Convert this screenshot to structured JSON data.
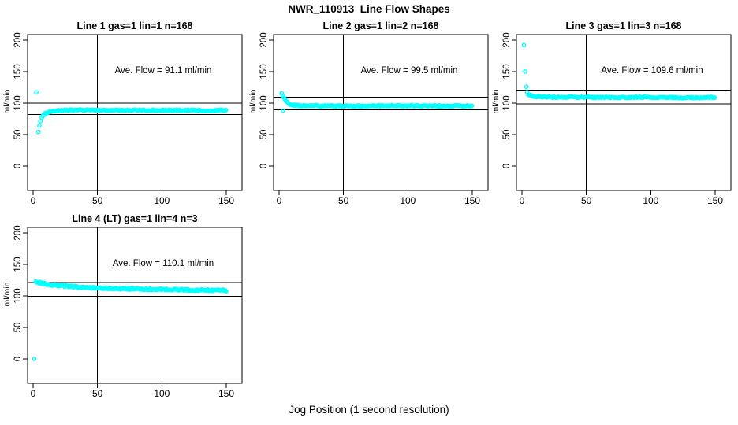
{
  "page": {
    "title": "NWR_110913  Line Flow Shapes",
    "xlabel": "Jog Position (1 second resolution)",
    "background_color": "#FFFFFF",
    "marker_color": "#00FFFF",
    "line_color": "#000000"
  },
  "chart_data": [
    {
      "type": "scatter",
      "title": "Line 1 gas=1 lin=1 n=168",
      "annotation": "Ave. Flow =  91.1  ml/min",
      "ave_flow_ml_min": 91.1,
      "n": 168,
      "ylabel": "ml/min",
      "xlim": [
        0,
        150
      ],
      "ylim": [
        0,
        200
      ],
      "xticks": [
        0,
        50,
        100,
        150
      ],
      "yticks": [
        0,
        50,
        100,
        150,
        200
      ],
      "vline_x": 50,
      "hlines": [
        100.2,
        82.0
      ],
      "marker_color": "#00FFFF",
      "outlier_points": [
        [
          2.5,
          117
        ]
      ],
      "trend_points": [
        [
          4,
          55
        ],
        [
          4.8,
          63
        ],
        [
          5.6,
          70
        ],
        [
          6.5,
          76
        ],
        [
          7.5,
          80
        ],
        [
          9,
          83
        ],
        [
          11,
          85.5
        ],
        [
          14,
          87
        ],
        [
          18,
          88
        ],
        [
          25,
          88.5
        ],
        [
          40,
          89
        ],
        [
          60,
          88.5
        ],
        [
          80,
          89
        ],
        [
          100,
          88.5
        ],
        [
          120,
          88.5
        ],
        [
          135,
          88
        ],
        [
          150,
          88.5
        ]
      ],
      "point_spacing": 0.9,
      "noise_amplitude": 1.0
    },
    {
      "type": "scatter",
      "title": "Line 2 gas=1 lin=2 n=168",
      "annotation": "Ave. Flow =  99.5  ml/min",
      "ave_flow_ml_min": 99.5,
      "n": 168,
      "ylabel": "ml/min",
      "xlim": [
        0,
        150
      ],
      "ylim": [
        0,
        200
      ],
      "xticks": [
        0,
        50,
        100,
        150
      ],
      "yticks": [
        0,
        50,
        100,
        150,
        200
      ],
      "vline_x": 50,
      "hlines": [
        109.5,
        89.6
      ],
      "marker_color": "#00FFFF",
      "outlier_points": [
        [
          3,
          88
        ]
      ],
      "trend_points": [
        [
          2,
          115
        ],
        [
          3,
          111.5
        ],
        [
          4,
          108
        ],
        [
          5,
          104.5
        ],
        [
          6,
          101.5
        ],
        [
          7.5,
          99.5
        ],
        [
          9,
          98
        ],
        [
          11,
          97
        ],
        [
          14,
          96.3
        ],
        [
          20,
          95.8
        ],
        [
          40,
          95.5
        ],
        [
          70,
          95.6
        ],
        [
          100,
          95.8
        ],
        [
          125,
          95.5
        ],
        [
          150,
          95.6
        ]
      ],
      "point_spacing": 0.9,
      "noise_amplitude": 0.9
    },
    {
      "type": "scatter",
      "title": "Line 3 gas=1 lin=3 n=168",
      "annotation": "Ave. Flow =  109.6  ml/min",
      "ave_flow_ml_min": 109.6,
      "n": 168,
      "ylabel": "ml/min",
      "xlim": [
        0,
        150
      ],
      "ylim": [
        0,
        200
      ],
      "xticks": [
        0,
        50,
        100,
        150
      ],
      "yticks": [
        0,
        50,
        100,
        150,
        200
      ],
      "vline_x": 50,
      "hlines": [
        120.6,
        98.6
      ],
      "marker_color": "#00FFFF",
      "outlier_points": [
        [
          1.5,
          192
        ],
        [
          2.5,
          150
        ],
        [
          3.5,
          126
        ]
      ],
      "trend_points": [
        [
          4,
          117
        ],
        [
          5,
          114
        ],
        [
          6,
          112.5
        ],
        [
          8,
          111
        ],
        [
          10,
          110.3
        ],
        [
          14,
          109.8
        ],
        [
          20,
          109.5
        ],
        [
          35,
          109.4
        ],
        [
          50,
          109.3
        ],
        [
          75,
          109
        ],
        [
          100,
          109.3
        ],
        [
          125,
          108.8
        ],
        [
          150,
          108.8
        ]
      ],
      "point_spacing": 0.9,
      "noise_amplitude": 1.0
    },
    {
      "type": "scatter",
      "title": "Line 4 (LT) gas=1 lin=4 n=3",
      "annotation": "Ave. Flow =  110.1  ml/min",
      "ave_flow_ml_min": 110.1,
      "n": 3,
      "ylabel": "ml/min",
      "xlim": [
        0,
        150
      ],
      "ylim": [
        0,
        200
      ],
      "xticks": [
        0,
        50,
        100,
        150
      ],
      "yticks": [
        0,
        50,
        100,
        150,
        200
      ],
      "vline_x": 50,
      "hlines": [
        121.1,
        99.1
      ],
      "marker_color": "#00FFFF",
      "outlier_points": [
        [
          1,
          0
        ]
      ],
      "trend_points": [
        [
          2,
          122
        ],
        [
          4,
          121.5
        ],
        [
          7,
          120
        ],
        [
          10,
          119
        ],
        [
          15,
          117.5
        ],
        [
          20,
          116.5
        ],
        [
          27,
          115
        ],
        [
          35,
          114
        ],
        [
          45,
          113
        ],
        [
          55,
          112.3
        ],
        [
          65,
          111.8
        ],
        [
          78,
          111
        ],
        [
          90,
          110.6
        ],
        [
          100,
          110.3
        ],
        [
          110,
          109.8
        ],
        [
          120,
          109.4
        ],
        [
          130,
          109.2
        ],
        [
          140,
          108.8
        ],
        [
          150,
          108.6
        ]
      ],
      "point_spacing": 0.8,
      "noise_amplitude": 1.4
    }
  ]
}
